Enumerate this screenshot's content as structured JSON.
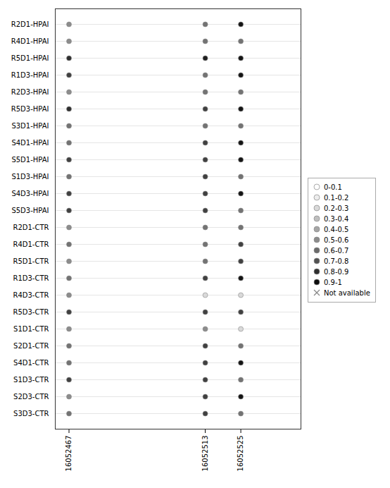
{
  "chart_data": {
    "type": "dotplot",
    "categories": [
      "R2D1-HPAI",
      "R4D1-HPAI",
      "R5D1-HPAI",
      "R1D3-HPAI",
      "R2D3-HPAI",
      "R5D3-HPAI",
      "S3D1-HPAI",
      "S4D1-HPAI",
      "S5D1-HPAI",
      "S1D3-HPAI",
      "S4D3-HPAI",
      "S5D3-HPAI",
      "R2D1-CTR",
      "R4D1-CTR",
      "R5D1-CTR",
      "R1D3-CTR",
      "R4D3-CTR",
      "R5D3-CTR",
      "S1D1-CTR",
      "S2D1-CTR",
      "S4D1-CTR",
      "S1D3-CTR",
      "S2D3-CTR",
      "S3D3-CTR"
    ],
    "x": [
      16052467,
      16052513,
      16052525
    ],
    "xlim": [
      16052462.36,
      16052545.3
    ],
    "xticks": [
      16052467,
      16052513,
      16052525
    ],
    "values": [
      [
        0.45,
        0.55,
        0.92
      ],
      [
        0.45,
        0.55,
        0.55
      ],
      [
        0.82,
        0.88,
        0.92
      ],
      [
        0.75,
        0.55,
        0.92
      ],
      [
        0.45,
        0.55,
        0.55
      ],
      [
        0.82,
        0.75,
        0.92
      ],
      [
        0.55,
        0.55,
        0.55
      ],
      [
        0.55,
        0.75,
        0.92
      ],
      [
        0.75,
        0.75,
        0.92
      ],
      [
        0.55,
        0.75,
        0.55
      ],
      [
        0.75,
        0.75,
        0.92
      ],
      [
        0.75,
        0.75,
        0.55
      ],
      [
        0.45,
        0.55,
        0.55
      ],
      [
        0.55,
        0.55,
        0.75
      ],
      [
        0.45,
        0.55,
        0.75
      ],
      [
        0.55,
        0.75,
        0.92
      ],
      [
        0.45,
        0.15,
        0.15
      ],
      [
        0.75,
        0.75,
        0.75
      ],
      [
        0.45,
        0.45,
        0.15
      ],
      [
        0.55,
        0.75,
        0.55
      ],
      [
        0.55,
        0.75,
        0.92
      ],
      [
        0.75,
        0.75,
        0.55
      ],
      [
        0.45,
        0.75,
        0.92
      ],
      [
        0.55,
        0.75,
        0.55
      ]
    ],
    "grid": true,
    "legend": "right",
    "legend_items": [
      {
        "label": "0-0.1",
        "color": "#ffffff"
      },
      {
        "label": "0.1-0.2",
        "color": "#ededed"
      },
      {
        "label": "0.2-0.3",
        "color": "#d9d9d9"
      },
      {
        "label": "0.3-0.4",
        "color": "#bfbfbf"
      },
      {
        "label": "0.4-0.5",
        "color": "#a6a6a6"
      },
      {
        "label": "0.5-0.6",
        "color": "#8c8c8c"
      },
      {
        "label": "0.6-0.7",
        "color": "#6b6b6b"
      },
      {
        "label": "0.7-0.8",
        "color": "#525252"
      },
      {
        "label": "0.8-0.9",
        "color": "#2e2e2e"
      },
      {
        "label": "0.9-1",
        "color": "#0d0d0d"
      },
      {
        "label": "Not available",
        "color": "#888888",
        "marker": "x"
      }
    ]
  }
}
